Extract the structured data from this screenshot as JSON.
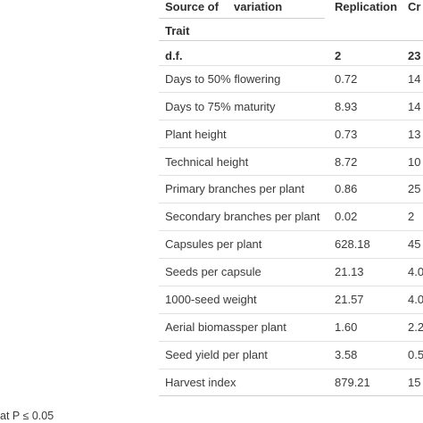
{
  "table": {
    "header": {
      "col1": "Source of variation",
      "col1_source": "Source of",
      "col1_variation": "variation",
      "col2": "Replication",
      "col3": "Cr"
    },
    "trait_label": "Trait",
    "df_row": {
      "label": "d.f.",
      "replication": "2",
      "col3": "23"
    },
    "rows": [
      {
        "trait": "Days to 50% flowering",
        "replication": "0.72",
        "col3": "14"
      },
      {
        "trait": "Days to 75% maturity",
        "replication": "8.93",
        "col3": "14"
      },
      {
        "trait": "Plant height",
        "replication": "0.73",
        "col3": "13"
      },
      {
        "trait": "Technical height",
        "replication": "8.72",
        "col3": "10"
      },
      {
        "trait": "Primary branches per plant",
        "replication": "0.86",
        "col3": "25"
      },
      {
        "trait": "Secondary branches per plant",
        "replication": "0.02",
        "col3": "2"
      },
      {
        "trait": "Capsules per plant",
        "replication": "628.18",
        "col3": "45"
      },
      {
        "trait": "Seeds per capsule",
        "replication": "21.13",
        "col3": "4.0"
      },
      {
        "trait": "1000-seed weight",
        "replication": "21.57",
        "col3": "4.0"
      },
      {
        "trait": "Aerial biomassper plant",
        "replication": "1.60",
        "col3": "2.2"
      },
      {
        "trait": "Seed yield per plant",
        "replication": "3.58",
        "col3": "0.5"
      },
      {
        "trait": "Harvest index",
        "replication": "879.21",
        "col3": "15"
      }
    ]
  },
  "footnote": "at P ≤ 0.05"
}
